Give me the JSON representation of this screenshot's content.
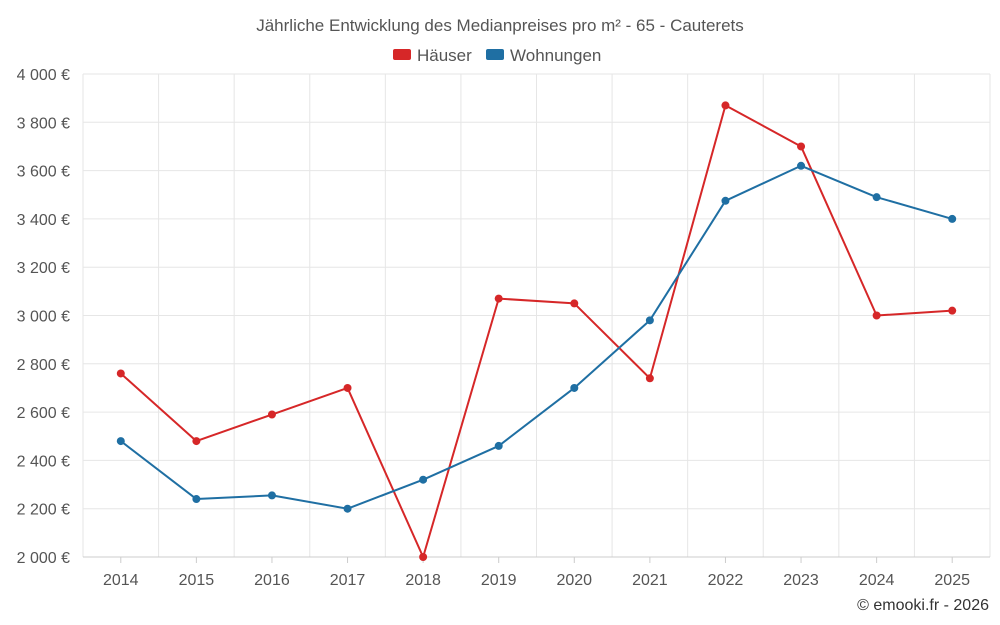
{
  "chart_data": {
    "type": "line",
    "title": "Jährliche Entwicklung des Medianpreises pro m² - 65 - Cauterets",
    "categories": [
      "2014",
      "2015",
      "2016",
      "2017",
      "2018",
      "2019",
      "2020",
      "2021",
      "2022",
      "2023",
      "2024",
      "2025"
    ],
    "series": [
      {
        "name": "Häuser",
        "color": "#d62728",
        "values": [
          2760,
          2480,
          2590,
          2700,
          2000,
          3070,
          3050,
          2740,
          3870,
          3700,
          3000,
          3020
        ]
      },
      {
        "name": "Wohnungen",
        "color": "#1f6fa3",
        "values": [
          2480,
          2240,
          2255,
          2200,
          2320,
          2460,
          2700,
          2980,
          3475,
          3620,
          3490,
          3400
        ]
      }
    ],
    "ylim": [
      2000,
      4000
    ],
    "yticks": [
      2000,
      2200,
      2400,
      2600,
      2800,
      3000,
      3200,
      3400,
      3600,
      3800,
      4000
    ],
    "ytick_labels": [
      "2 000 €",
      "2 200 €",
      "2 400 €",
      "2 600 €",
      "2 800 €",
      "3 000 €",
      "3 200 €",
      "3 400 €",
      "3 600 €",
      "3 800 €",
      "4 000 €"
    ],
    "legend_position": "top-center",
    "grid": true
  },
  "credit": "© emooki.fr - 2026"
}
